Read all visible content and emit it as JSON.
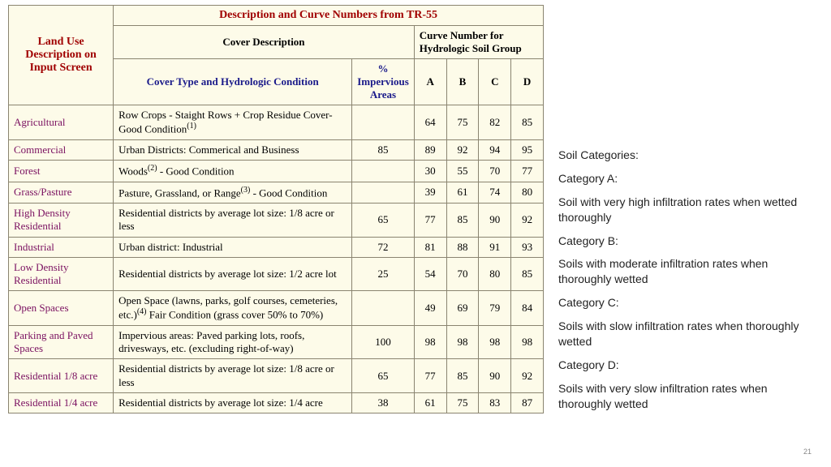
{
  "table": {
    "title": "Description and Curve Numbers from TR-55",
    "landUseHeader": "Land Use Description on Input Screen",
    "coverDescriptionHeader": "Cover Description",
    "curveGroupHeader": "Curve Number for Hydrologic Soil Group",
    "coverTypeHeader": "Cover Type and Hydrologic Condition",
    "imperviousHeader": "% Impervious Areas",
    "groupA": "A",
    "groupB": "B",
    "groupC": "C",
    "groupD": "D",
    "rows": [
      {
        "landUse": "Agricultural",
        "desc": "Row Crops - Staight Rows + Crop Residue Cover- Good Condition",
        "sup": "(1)",
        "imp": "",
        "a": "64",
        "b": "75",
        "c": "82",
        "d": "85"
      },
      {
        "landUse": "Commercial",
        "desc": "Urban Districts: Commerical and Business",
        "sup": "",
        "imp": "85",
        "a": "89",
        "b": "92",
        "c": "94",
        "d": "95"
      },
      {
        "landUse": "Forest",
        "desc": "Woods",
        "sup": "(2)",
        "descAfter": " - Good Condition",
        "imp": "",
        "a": "30",
        "b": "55",
        "c": "70",
        "d": "77"
      },
      {
        "landUse": "Grass/Pasture",
        "desc": "Pasture, Grassland, or Range",
        "sup": "(3)",
        "descAfter": " - Good Condition",
        "imp": "",
        "a": "39",
        "b": "61",
        "c": "74",
        "d": "80"
      },
      {
        "landUse": "High Density Residential",
        "desc": "Residential districts by average lot size: 1/8 acre or less",
        "sup": "",
        "imp": "65",
        "a": "77",
        "b": "85",
        "c": "90",
        "d": "92"
      },
      {
        "landUse": "Industrial",
        "desc": "Urban district: Industrial",
        "sup": "",
        "imp": "72",
        "a": "81",
        "b": "88",
        "c": "91",
        "d": "93"
      },
      {
        "landUse": "Low Density Residential",
        "desc": "Residential districts by average lot size: 1/2 acre lot",
        "sup": "",
        "imp": "25",
        "a": "54",
        "b": "70",
        "c": "80",
        "d": "85"
      },
      {
        "landUse": "Open Spaces",
        "desc": "Open Space (lawns, parks, golf courses, cemeteries, etc.)",
        "sup": "(4)",
        "descAfter": " Fair Condition (grass cover 50% to 70%)",
        "imp": "",
        "a": "49",
        "b": "69",
        "c": "79",
        "d": "84"
      },
      {
        "landUse": "Parking and Paved Spaces",
        "desc": "Impervious areas: Paved parking lots, roofs, drivesways, etc. (excluding right-of-way)",
        "sup": "",
        "imp": "100",
        "a": "98",
        "b": "98",
        "c": "98",
        "d": "98"
      },
      {
        "landUse": "Residential 1/8 acre",
        "desc": "Residential districts by average lot size: 1/8 acre or less",
        "sup": "",
        "imp": "65",
        "a": "77",
        "b": "85",
        "c": "90",
        "d": "92"
      },
      {
        "landUse": "Residential 1/4 acre",
        "desc": "Residential districts by average lot size: 1/4 acre",
        "sup": "",
        "imp": "38",
        "a": "61",
        "b": "75",
        "c": "83",
        "d": "87"
      }
    ]
  },
  "side": {
    "title": "Soil Categories:",
    "catA_label": "Category A:",
    "catA_text": "Soil with very high infiltration rates when wetted thoroughly",
    "catB_label": "Category B:",
    "catB_text": "Soils with moderate infiltration rates when thoroughly wetted",
    "catC_label": "Category C:",
    "catC_text": "Soils with slow infiltration rates when thoroughly wetted",
    "catD_label": "Category D:",
    "catD_text": "Soils with very slow infiltration rates when thoroughly wetted"
  },
  "pageNumber": "21",
  "colors": {
    "tableBg": "#fdfbe9",
    "border": "#8a8470",
    "titleRed": "#a00000",
    "headerBlue": "#1a1a8a",
    "landUsePurple": "#7a1060"
  }
}
